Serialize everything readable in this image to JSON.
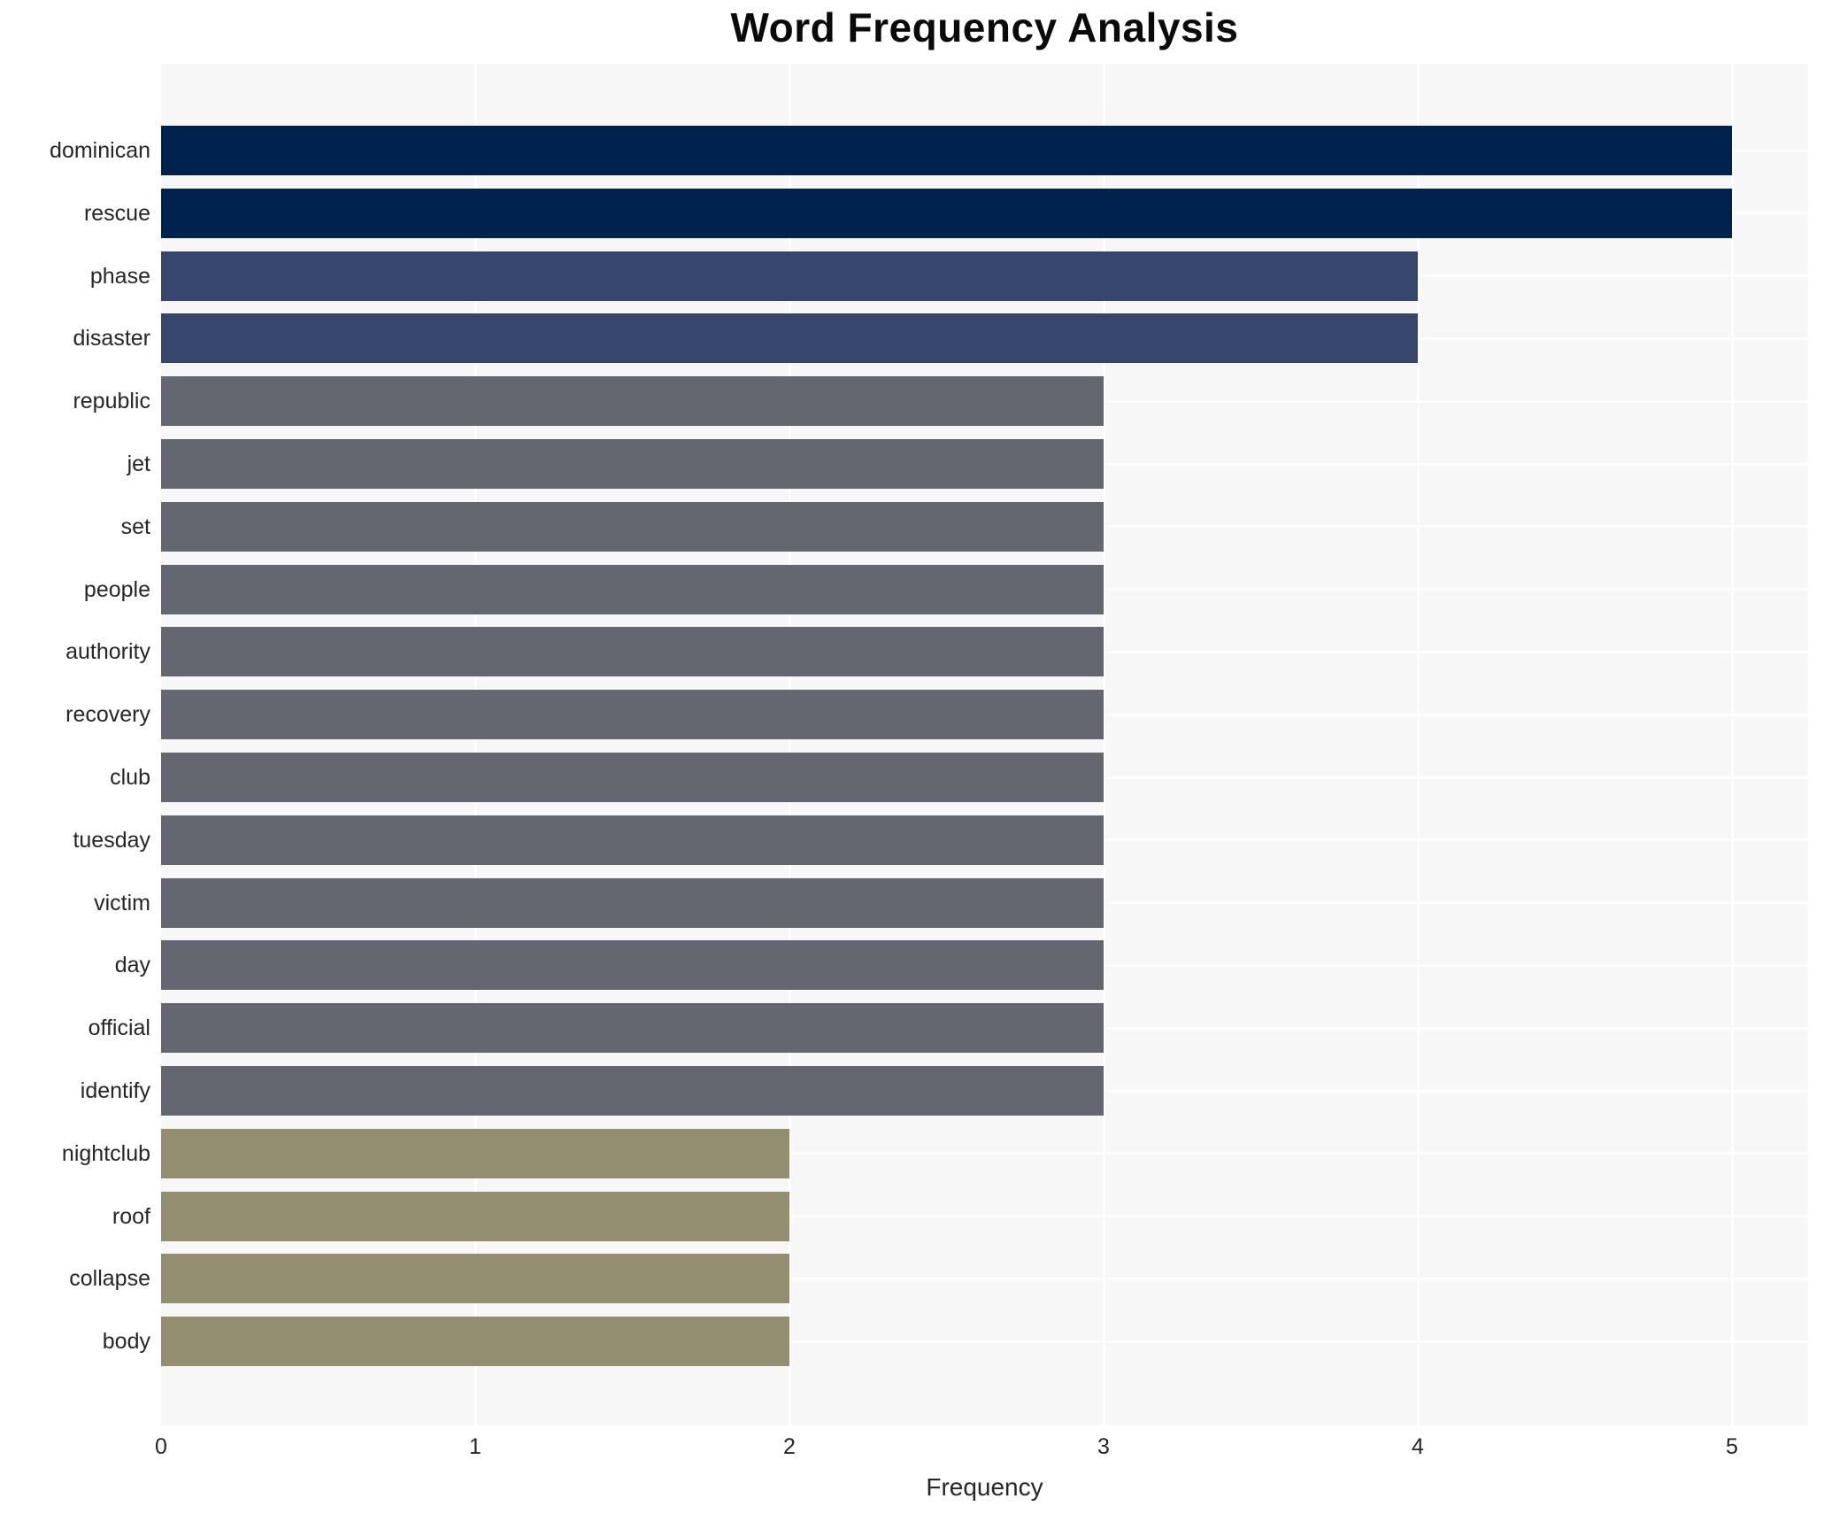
{
  "chart_data": {
    "type": "bar",
    "orientation": "horizontal",
    "title": "Word Frequency Analysis",
    "xlabel": "Frequency",
    "ylabel": "",
    "categories": [
      "dominican",
      "rescue",
      "phase",
      "disaster",
      "republic",
      "jet",
      "set",
      "people",
      "authority",
      "recovery",
      "club",
      "tuesday",
      "victim",
      "day",
      "official",
      "identify",
      "nightclub",
      "roof",
      "collapse",
      "body"
    ],
    "values": [
      5,
      5,
      4,
      4,
      3,
      3,
      3,
      3,
      3,
      3,
      3,
      3,
      3,
      3,
      3,
      3,
      2,
      2,
      2,
      2
    ],
    "xticks": [
      "0",
      "1",
      "2",
      "3",
      "4",
      "5"
    ],
    "xlim": [
      0,
      5.24
    ],
    "grid": true,
    "legend": false,
    "colors": {
      "plot_background": "#f7f7f7",
      "gridline": "#ffffff",
      "tick_text": "#262626",
      "title_text": "#0a0a0a",
      "value_to_bar_color": {
        "5": "#00234e",
        "4": "#36456b",
        "3": "#656770",
        "2": "#948e70"
      }
    }
  }
}
